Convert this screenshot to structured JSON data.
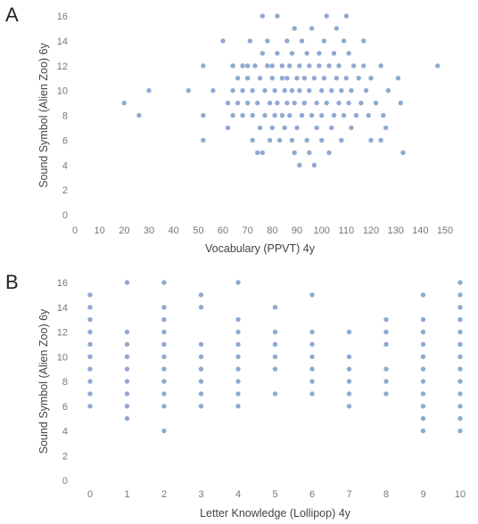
{
  "panels": [
    {
      "letter": "A"
    },
    {
      "letter": "B"
    }
  ],
  "colors": {
    "point": "#4a74b4",
    "tick_text": "#777777",
    "label_text": "#444444"
  },
  "chart_data": [
    {
      "type": "scatter",
      "title": "",
      "xlabel": "Vocabulary (PPVT) 4y",
      "ylabel": "Sound Symbol (Alien Zoo) 6y",
      "xlim": [
        0,
        150
      ],
      "ylim": [
        0,
        16
      ],
      "xticks": [
        0,
        10,
        20,
        30,
        40,
        50,
        60,
        70,
        80,
        90,
        100,
        110,
        120,
        130,
        140,
        150
      ],
      "yticks": [
        0,
        2,
        4,
        6,
        8,
        10,
        12,
        14,
        16
      ],
      "grid": false,
      "legend": "none",
      "points": [
        [
          20,
          9
        ],
        [
          26,
          8
        ],
        [
          30,
          10
        ],
        [
          46,
          10
        ],
        [
          52,
          12
        ],
        [
          52,
          8
        ],
        [
          52,
          6
        ],
        [
          56,
          10
        ],
        [
          60,
          14
        ],
        [
          62,
          7
        ],
        [
          62,
          9
        ],
        [
          64,
          12
        ],
        [
          64,
          10
        ],
        [
          64,
          8
        ],
        [
          66,
          11
        ],
        [
          66,
          9
        ],
        [
          68,
          12
        ],
        [
          68,
          8
        ],
        [
          68,
          10
        ],
        [
          70,
          12
        ],
        [
          70,
          9
        ],
        [
          70,
          11
        ],
        [
          71,
          14
        ],
        [
          72,
          10
        ],
        [
          72,
          8
        ],
        [
          72,
          6
        ],
        [
          73,
          12
        ],
        [
          74,
          9
        ],
        [
          74,
          5
        ],
        [
          75,
          11
        ],
        [
          75,
          7
        ],
        [
          76,
          16
        ],
        [
          76,
          13
        ],
        [
          76,
          5
        ],
        [
          77,
          10
        ],
        [
          77,
          8
        ],
        [
          78,
          12
        ],
        [
          78,
          14
        ],
        [
          79,
          6
        ],
        [
          79,
          9
        ],
        [
          80,
          11
        ],
        [
          80,
          7
        ],
        [
          80,
          12
        ],
        [
          81,
          8
        ],
        [
          81,
          10
        ],
        [
          82,
          16
        ],
        [
          82,
          13
        ],
        [
          82,
          9
        ],
        [
          83,
          6
        ],
        [
          84,
          11
        ],
        [
          84,
          8
        ],
        [
          84,
          12
        ],
        [
          85,
          10
        ],
        [
          85,
          7
        ],
        [
          86,
          14
        ],
        [
          86,
          9
        ],
        [
          86,
          11
        ],
        [
          87,
          12
        ],
        [
          87,
          8
        ],
        [
          88,
          10
        ],
        [
          88,
          6
        ],
        [
          88,
          13
        ],
        [
          89,
          15
        ],
        [
          89,
          5
        ],
        [
          89,
          9
        ],
        [
          90,
          11
        ],
        [
          90,
          7
        ],
        [
          91,
          12
        ],
        [
          91,
          10
        ],
        [
          91,
          4
        ],
        [
          92,
          8
        ],
        [
          92,
          14
        ],
        [
          93,
          9
        ],
        [
          93,
          11
        ],
        [
          94,
          6
        ],
        [
          94,
          13
        ],
        [
          95,
          10
        ],
        [
          95,
          12
        ],
        [
          95,
          5
        ],
        [
          96,
          8
        ],
        [
          96,
          15
        ],
        [
          97,
          4
        ],
        [
          97,
          11
        ],
        [
          98,
          9
        ],
        [
          98,
          7
        ],
        [
          99,
          12
        ],
        [
          99,
          13
        ],
        [
          100,
          10
        ],
        [
          100,
          8
        ],
        [
          100,
          6
        ],
        [
          101,
          14
        ],
        [
          101,
          11
        ],
        [
          102,
          16
        ],
        [
          102,
          9
        ],
        [
          103,
          12
        ],
        [
          103,
          5
        ],
        [
          104,
          10
        ],
        [
          104,
          7
        ],
        [
          105,
          13
        ],
        [
          105,
          8
        ],
        [
          106,
          11
        ],
        [
          106,
          15
        ],
        [
          107,
          9
        ],
        [
          107,
          12
        ],
        [
          108,
          10
        ],
        [
          108,
          6
        ],
        [
          109,
          14
        ],
        [
          109,
          8
        ],
        [
          110,
          16
        ],
        [
          110,
          11
        ],
        [
          111,
          9
        ],
        [
          111,
          13
        ],
        [
          112,
          10
        ],
        [
          112,
          7
        ],
        [
          113,
          12
        ],
        [
          114,
          8
        ],
        [
          115,
          11
        ],
        [
          116,
          9
        ],
        [
          117,
          12
        ],
        [
          117,
          14
        ],
        [
          118,
          10
        ],
        [
          119,
          8
        ],
        [
          120,
          11
        ],
        [
          120,
          6
        ],
        [
          122,
          9
        ],
        [
          124,
          12
        ],
        [
          124,
          6
        ],
        [
          125,
          8
        ],
        [
          126,
          7
        ],
        [
          127,
          10
        ],
        [
          131,
          11
        ],
        [
          132,
          9
        ],
        [
          133,
          5
        ],
        [
          147,
          12
        ]
      ]
    },
    {
      "type": "scatter",
      "title": "",
      "xlabel": "Letter Knowledge (Lollipop) 4y",
      "ylabel": "Sound Symbol (Alien Zoo) 6y",
      "xlim": [
        -0.5,
        10.2
      ],
      "ylim": [
        0,
        16
      ],
      "xticks": [
        0,
        1,
        2,
        3,
        4,
        5,
        6,
        7,
        8,
        9,
        10
      ],
      "yticks": [
        0,
        2,
        4,
        6,
        8,
        10,
        12,
        14,
        16
      ],
      "grid": false,
      "legend": "none",
      "points": [
        [
          0,
          6
        ],
        [
          0,
          7
        ],
        [
          0,
          8
        ],
        [
          0,
          9
        ],
        [
          0,
          10
        ],
        [
          0,
          11
        ],
        [
          0,
          12
        ],
        [
          0,
          13
        ],
        [
          0,
          14
        ],
        [
          0,
          15
        ],
        [
          1,
          5
        ],
        [
          1,
          6
        ],
        [
          1,
          7
        ],
        [
          1,
          8
        ],
        [
          1,
          9
        ],
        [
          1,
          10
        ],
        [
          1,
          11
        ],
        [
          1,
          12
        ],
        [
          1,
          16
        ],
        [
          2,
          4
        ],
        [
          2,
          6
        ],
        [
          2,
          7
        ],
        [
          2,
          8
        ],
        [
          2,
          9
        ],
        [
          2,
          10
        ],
        [
          2,
          11
        ],
        [
          2,
          12
        ],
        [
          2,
          13
        ],
        [
          2,
          14
        ],
        [
          2,
          16
        ],
        [
          3,
          6
        ],
        [
          3,
          7
        ],
        [
          3,
          8
        ],
        [
          3,
          9
        ],
        [
          3,
          10
        ],
        [
          3,
          11
        ],
        [
          3,
          14
        ],
        [
          3,
          15
        ],
        [
          4,
          6
        ],
        [
          4,
          7
        ],
        [
          4,
          8
        ],
        [
          4,
          9
        ],
        [
          4,
          10
        ],
        [
          4,
          11
        ],
        [
          4,
          12
        ],
        [
          4,
          13
        ],
        [
          4,
          16
        ],
        [
          5,
          7
        ],
        [
          5,
          9
        ],
        [
          5,
          10
        ],
        [
          5,
          11
        ],
        [
          5,
          12
        ],
        [
          5,
          14
        ],
        [
          6,
          7
        ],
        [
          6,
          8
        ],
        [
          6,
          9
        ],
        [
          6,
          10
        ],
        [
          6,
          11
        ],
        [
          6,
          12
        ],
        [
          6,
          15
        ],
        [
          7,
          6
        ],
        [
          7,
          7
        ],
        [
          7,
          8
        ],
        [
          7,
          9
        ],
        [
          7,
          10
        ],
        [
          7,
          12
        ],
        [
          8,
          7
        ],
        [
          8,
          8
        ],
        [
          8,
          9
        ],
        [
          8,
          11
        ],
        [
          8,
          12
        ],
        [
          8,
          13
        ],
        [
          9,
          4
        ],
        [
          9,
          5
        ],
        [
          9,
          6
        ],
        [
          9,
          7
        ],
        [
          9,
          8
        ],
        [
          9,
          9
        ],
        [
          9,
          10
        ],
        [
          9,
          11
        ],
        [
          9,
          12
        ],
        [
          9,
          13
        ],
        [
          9,
          15
        ],
        [
          10,
          4
        ],
        [
          10,
          5
        ],
        [
          10,
          6
        ],
        [
          10,
          7
        ],
        [
          10,
          8
        ],
        [
          10,
          9
        ],
        [
          10,
          10
        ],
        [
          10,
          11
        ],
        [
          10,
          12
        ],
        [
          10,
          13
        ],
        [
          10,
          14
        ],
        [
          10,
          15
        ],
        [
          10,
          16
        ]
      ]
    }
  ]
}
